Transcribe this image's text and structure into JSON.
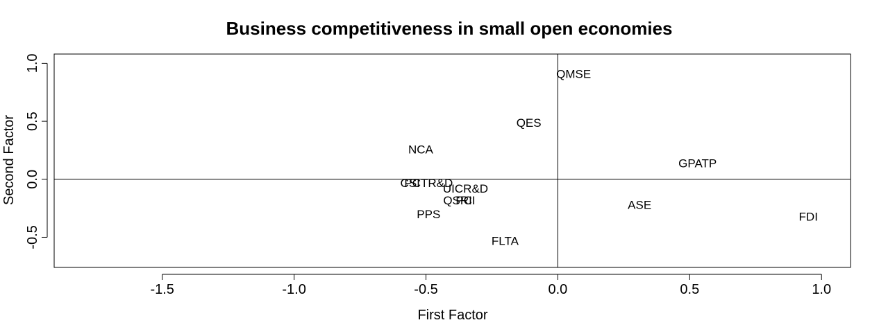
{
  "chart_data": {
    "type": "scatter",
    "title": "Business competitiveness in small open economies",
    "xlabel": "First Factor",
    "ylabel": "Second Factor",
    "xlim": [
      -1.91,
      1.11
    ],
    "ylim": [
      -0.76,
      1.08
    ],
    "xticks": [
      -1.5,
      -1.0,
      -0.5,
      0.0,
      0.5,
      1.0
    ],
    "yticks": [
      -0.5,
      0.0,
      0.5,
      1.0
    ],
    "xtick_labels": [
      "-1.5",
      "-1.0",
      "-0.5",
      "0.0",
      "0.5",
      "1.0"
    ],
    "ytick_labels": [
      "-0.5",
      "0.0",
      "0.5",
      "1.0"
    ],
    "reference_lines": {
      "x": 0,
      "y": 0
    },
    "points": [
      {
        "label": "QMSE",
        "x": 0.06,
        "y": 0.91
      },
      {
        "label": "QES",
        "x": -0.11,
        "y": 0.49
      },
      {
        "label": "NCA",
        "x": -0.52,
        "y": 0.26
      },
      {
        "label": "GPATP",
        "x": 0.53,
        "y": 0.14
      },
      {
        "label": "PCTR&D",
        "x": -0.49,
        "y": -0.03
      },
      {
        "label": "CSI",
        "x": -0.56,
        "y": -0.03
      },
      {
        "label": "UICR&D",
        "x": -0.35,
        "y": -0.08
      },
      {
        "label": "QSRI",
        "x": -0.38,
        "y": -0.18
      },
      {
        "label": "PCI",
        "x": -0.35,
        "y": -0.18
      },
      {
        "label": "PPS",
        "x": -0.49,
        "y": -0.3
      },
      {
        "label": "ASE",
        "x": 0.31,
        "y": -0.22
      },
      {
        "label": "FDI",
        "x": 0.95,
        "y": -0.32
      },
      {
        "label": "FLTA",
        "x": -0.2,
        "y": -0.53
      }
    ]
  }
}
